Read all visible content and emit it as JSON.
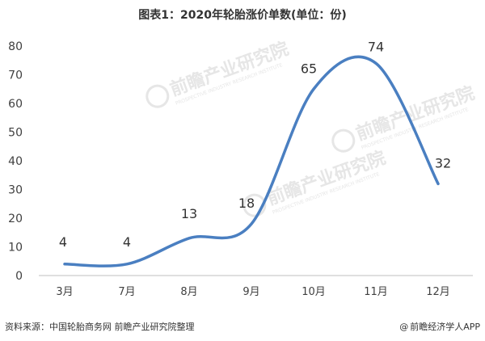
{
  "title": "图表1：2020年轮胎涨价单数(单位：份)",
  "footer": {
    "source": "资料来源：中国轮胎商务网 前瞻产业研究院整理",
    "brand": "前瞻经济学人APP",
    "brand_prefix": "@"
  },
  "watermark": {
    "text": "前瞻产业研究院",
    "subtext": "PROSPECTIVE INDUSTRY RESEARCH INSTITUTE"
  },
  "colors": {
    "line": "#4a7fc1",
    "axis": "#bfbfbf",
    "text": "#404040",
    "watermark": "#e6e6e6"
  },
  "chart_data": {
    "type": "line",
    "title": "图表1：2020年轮胎涨价单数(单位：份)",
    "categories": [
      "3月",
      "7月",
      "8月",
      "9月",
      "10月",
      "11月",
      "12月"
    ],
    "values": [
      4,
      4,
      13,
      18,
      65,
      74,
      32
    ],
    "ylim": [
      0,
      80
    ],
    "yticks": [
      0,
      10,
      20,
      30,
      40,
      50,
      60,
      70,
      80
    ],
    "grid": false,
    "smooth": true,
    "data_labels": true
  }
}
